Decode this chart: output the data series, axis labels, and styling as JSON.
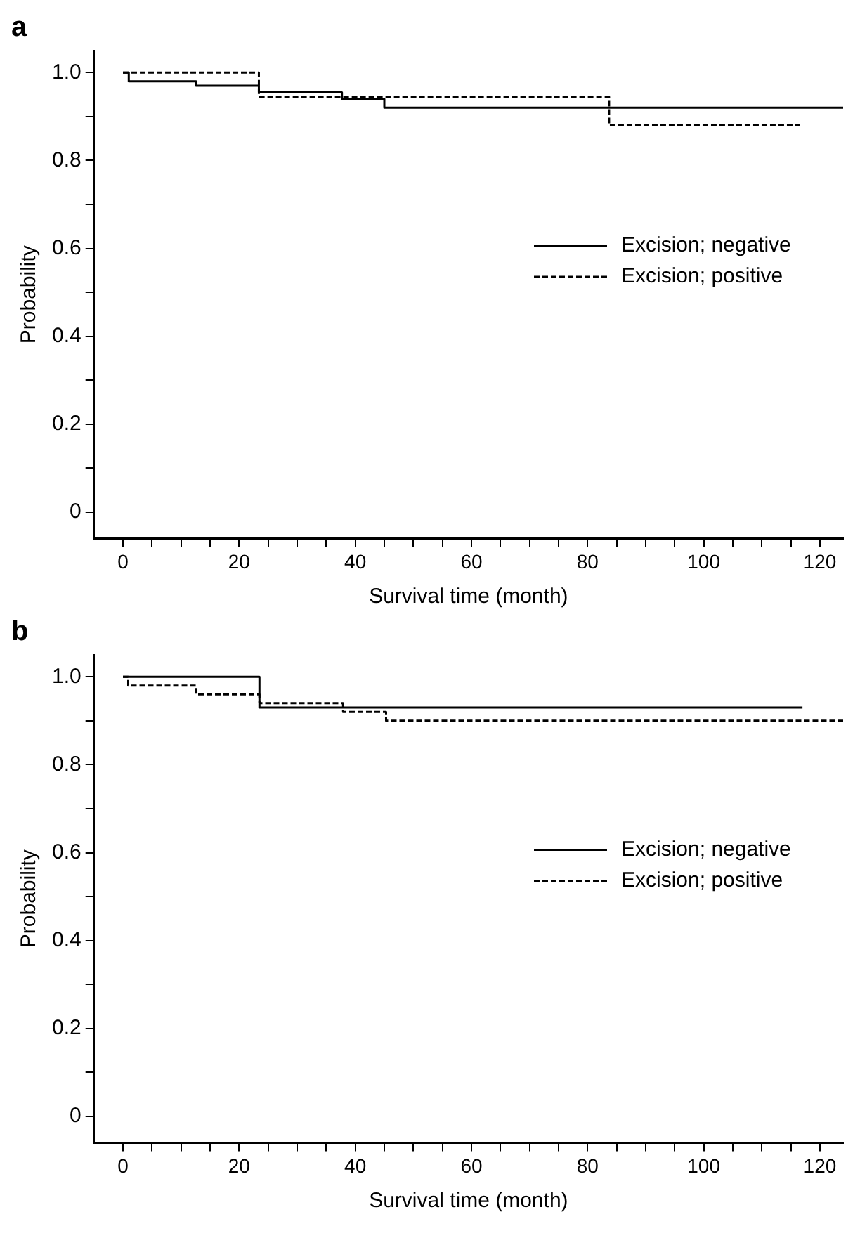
{
  "chart_data": [
    {
      "type": "step",
      "title": "a",
      "xlabel": "Survival time (month)",
      "ylabel": "Probability",
      "xlim": [
        -5,
        124
      ],
      "xticks": [
        0,
        {
          "value": 5,
          "label": null
        },
        {
          "value": 10,
          "label": null
        },
        {
          "value": 15,
          "label": null
        },
        20,
        {
          "value": 25,
          "label": null
        },
        {
          "value": 30,
          "label": null
        },
        {
          "value": 35,
          "label": null
        },
        40,
        {
          "value": 45,
          "label": null
        },
        {
          "value": 50,
          "label": null
        },
        {
          "value": 55,
          "label": null
        },
        60,
        {
          "value": 65,
          "label": null
        },
        {
          "value": 70,
          "label": null
        },
        {
          "value": 75,
          "label": null
        },
        80,
        {
          "value": 85,
          "label": null
        },
        {
          "value": 90,
          "label": null
        },
        {
          "value": 95,
          "label": null
        },
        100,
        {
          "value": 105,
          "label": null
        },
        {
          "value": 110,
          "label": null
        },
        {
          "value": 115,
          "label": null
        },
        120
      ],
      "ylim": [
        -0.06,
        1.05
      ],
      "yticks": [
        0,
        {
          "value": 0.1,
          "label": null
        },
        0.2,
        {
          "value": 0.3,
          "label": null
        },
        0.4,
        {
          "value": 0.5,
          "label": null
        },
        0.6,
        {
          "value": 0.7,
          "label": null
        },
        0.8,
        {
          "value": 0.9,
          "label": null
        },
        {
          "value": 1,
          "label": "1.0"
        }
      ],
      "grid": false,
      "legend": "right",
      "series": [
        {
          "name": "Excision; negative",
          "color": "#000000",
          "line_style": "solid",
          "x": [
            0,
            1,
            12.6,
            23.4,
            37.7,
            45,
            124
          ],
          "values": [
            1,
            0.98,
            0.97,
            0.955,
            0.94,
            0.92,
            0.92
          ]
        },
        {
          "name": "Excision; positive",
          "color": "#000000",
          "line_style": "dashed",
          "x": [
            0,
            23.4,
            83.7,
            116.5
          ],
          "values": [
            1,
            0.945,
            0.88,
            0.88
          ]
        }
      ]
    },
    {
      "type": "step",
      "title": "b",
      "xlabel": "Survival time (month)",
      "ylabel": "Probability",
      "xlim": [
        -5,
        124
      ],
      "xticks": [
        0,
        {
          "value": 5,
          "label": null
        },
        {
          "value": 10,
          "label": null
        },
        {
          "value": 15,
          "label": null
        },
        20,
        {
          "value": 25,
          "label": null
        },
        {
          "value": 30,
          "label": null
        },
        {
          "value": 35,
          "label": null
        },
        40,
        {
          "value": 45,
          "label": null
        },
        {
          "value": 50,
          "label": null
        },
        {
          "value": 55,
          "label": null
        },
        60,
        {
          "value": 65,
          "label": null
        },
        {
          "value": 70,
          "label": null
        },
        {
          "value": 75,
          "label": null
        },
        80,
        {
          "value": 85,
          "label": null
        },
        {
          "value": 90,
          "label": null
        },
        {
          "value": 95,
          "label": null
        },
        100,
        {
          "value": 105,
          "label": null
        },
        {
          "value": 110,
          "label": null
        },
        {
          "value": 115,
          "label": null
        },
        120
      ],
      "ylim": [
        -0.06,
        1.05
      ],
      "yticks": [
        0,
        {
          "value": 0.1,
          "label": null
        },
        0.2,
        {
          "value": 0.3,
          "label": null
        },
        0.4,
        {
          "value": 0.5,
          "label": null
        },
        0.6,
        {
          "value": 0.7,
          "label": null
        },
        0.8,
        {
          "value": 0.9,
          "label": null
        },
        {
          "value": 1,
          "label": "1.0"
        }
      ],
      "grid": false,
      "legend": "right",
      "series": [
        {
          "name": "Excision; negative",
          "color": "#000000",
          "line_style": "solid",
          "x": [
            0,
            23.5,
            117
          ],
          "values": [
            1,
            0.93,
            0.93
          ]
        },
        {
          "name": "Excision; positive",
          "color": "#000000",
          "line_style": "dashed",
          "x": [
            0,
            0.9,
            12.6,
            23.5,
            37.9,
            45.3,
            124
          ],
          "values": [
            1,
            0.98,
            0.96,
            0.94,
            0.92,
            0.9,
            0.9
          ]
        }
      ]
    }
  ]
}
